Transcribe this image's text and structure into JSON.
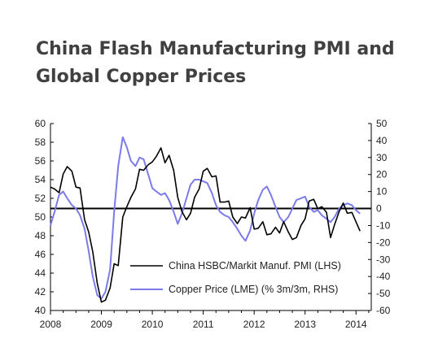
{
  "title_line1": "China Flash Manufacturing PMI and",
  "title_line2": "Global Copper Prices",
  "chart_data": {
    "type": "line",
    "x_ticks": [
      "2008",
      "2009",
      "2010",
      "2011",
      "2012",
      "2013",
      "2014"
    ],
    "left_axis": {
      "ylim": [
        40,
        60
      ],
      "ticks": [
        40,
        42,
        44,
        46,
        48,
        50,
        52,
        54,
        56,
        58,
        60
      ]
    },
    "right_axis": {
      "ylim": [
        -60,
        50
      ],
      "ticks": [
        -60,
        -50,
        -40,
        -30,
        -20,
        -10,
        0,
        10,
        20,
        30,
        40,
        50
      ]
    },
    "reference_line": {
      "axis": "right",
      "value": 0
    },
    "legend_position": "bottom-right",
    "series": [
      {
        "name": "China HSBC/Markit Manuf. PMI (LHS)",
        "axis": "left",
        "color": "#000000",
        "x": [
          2008.0,
          2008.08,
          2008.17,
          2008.25,
          2008.33,
          2008.42,
          2008.5,
          2008.58,
          2008.67,
          2008.75,
          2008.83,
          2008.92,
          2009.0,
          2009.08,
          2009.17,
          2009.25,
          2009.33,
          2009.42,
          2009.5,
          2009.58,
          2009.67,
          2009.75,
          2009.83,
          2009.92,
          2010.0,
          2010.08,
          2010.17,
          2010.25,
          2010.33,
          2010.42,
          2010.5,
          2010.58,
          2010.67,
          2010.75,
          2010.83,
          2010.92,
          2011.0,
          2011.08,
          2011.17,
          2011.25,
          2011.33,
          2011.42,
          2011.5,
          2011.58,
          2011.67,
          2011.75,
          2011.83,
          2011.92,
          2012.0,
          2012.08,
          2012.17,
          2012.25,
          2012.33,
          2012.42,
          2012.5,
          2012.58,
          2012.67,
          2012.75,
          2012.83,
          2012.92,
          2013.0,
          2013.08,
          2013.17,
          2013.25,
          2013.33,
          2013.42,
          2013.5,
          2013.58,
          2013.67,
          2013.75,
          2013.83,
          2013.92,
          2014.0,
          2014.08
        ],
        "y": [
          53.2,
          53.0,
          52.6,
          54.6,
          55.4,
          54.9,
          53.2,
          53.1,
          49.7,
          48.4,
          46.3,
          42.9,
          40.9,
          41.1,
          42.4,
          45.0,
          44.8,
          50.0,
          51.1,
          52.1,
          53.0,
          55.1,
          55.0,
          55.6,
          55.9,
          56.5,
          57.4,
          55.8,
          56.6,
          55.0,
          52.1,
          50.6,
          49.7,
          50.4,
          52.1,
          53.0,
          54.9,
          55.2,
          54.3,
          54.4,
          51.6,
          51.6,
          51.7,
          50.0,
          49.3,
          50.0,
          49.9,
          51.0,
          48.7,
          48.8,
          49.5,
          48.1,
          48.2,
          48.9,
          48.3,
          49.5,
          48.4,
          47.6,
          47.8,
          49.1,
          49.8,
          51.7,
          51.9,
          50.9,
          51.1,
          50.5,
          47.8,
          49.2,
          50.6,
          51.5,
          50.4,
          50.5,
          49.5,
          48.5
        ]
      },
      {
        "name": "Copper Price (LME) (% 3m/3m, RHS)",
        "axis": "right",
        "color": "#7b7bea",
        "x": [
          2008.0,
          2008.08,
          2008.17,
          2008.25,
          2008.33,
          2008.42,
          2008.5,
          2008.58,
          2008.67,
          2008.75,
          2008.83,
          2008.92,
          2009.0,
          2009.08,
          2009.17,
          2009.25,
          2009.33,
          2009.42,
          2009.5,
          2009.58,
          2009.67,
          2009.75,
          2009.83,
          2009.92,
          2010.0,
          2010.08,
          2010.17,
          2010.25,
          2010.33,
          2010.42,
          2010.5,
          2010.58,
          2010.67,
          2010.75,
          2010.83,
          2010.92,
          2011.0,
          2011.08,
          2011.17,
          2011.25,
          2011.33,
          2011.42,
          2011.5,
          2011.58,
          2011.67,
          2011.75,
          2011.83,
          2011.92,
          2012.0,
          2012.08,
          2012.17,
          2012.25,
          2012.33,
          2012.42,
          2012.5,
          2012.58,
          2012.67,
          2012.75,
          2012.83,
          2012.92,
          2013.0,
          2013.08,
          2013.17,
          2013.25,
          2013.33,
          2013.42,
          2013.5,
          2013.58,
          2013.67,
          2013.75,
          2013.83,
          2013.92,
          2014.0,
          2014.08
        ],
        "y": [
          -10,
          -2,
          8,
          10,
          6,
          2,
          0,
          -4,
          -12,
          -25,
          -40,
          -51,
          -53,
          -49,
          -36,
          -2,
          25,
          42,
          36,
          28,
          25,
          30,
          29,
          20,
          12,
          10,
          8,
          9,
          5,
          -2,
          -9,
          -3,
          6,
          14,
          17,
          17,
          16,
          15,
          9,
          2,
          -2,
          -4,
          -5,
          -8,
          -12,
          -16,
          -19,
          -13,
          -3,
          5,
          11,
          13,
          8,
          1,
          -5,
          -8,
          -5,
          0,
          5,
          6,
          7,
          1,
          -2,
          -1,
          -4,
          -6,
          -8,
          -5,
          0,
          2,
          3,
          2,
          -1,
          -3
        ]
      }
    ]
  }
}
